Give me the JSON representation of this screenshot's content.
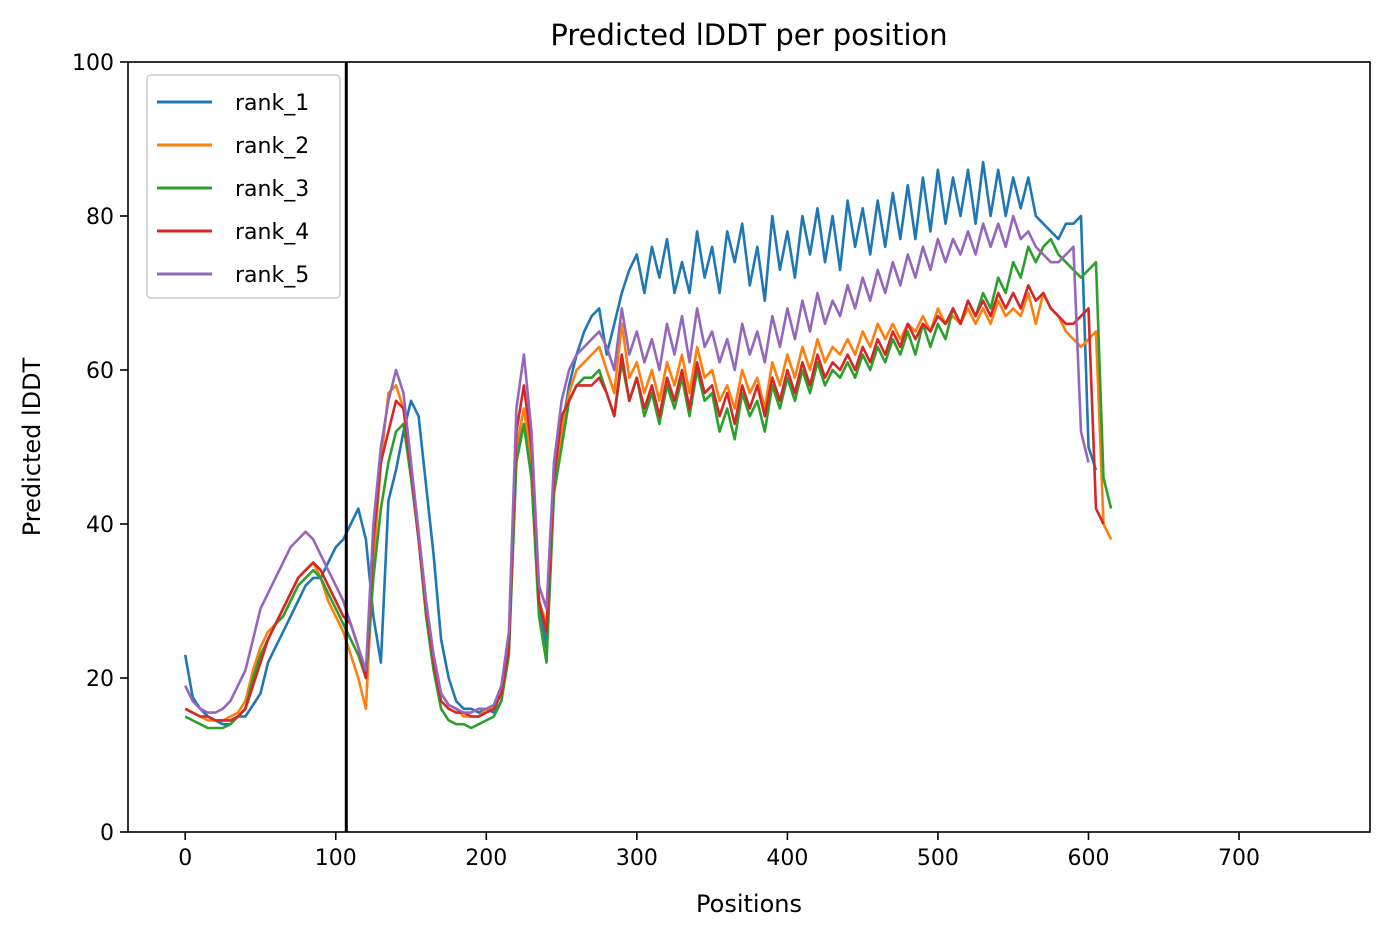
{
  "chart_data": {
    "type": "line",
    "title": "Predicted lDDT per position",
    "xlabel": "Positions",
    "ylabel": "Predicted lDDT",
    "xlim": [
      -38,
      787
    ],
    "ylim": [
      0,
      100
    ],
    "xticks": [
      0,
      100,
      200,
      300,
      400,
      500,
      600,
      700
    ],
    "yticks": [
      0,
      20,
      40,
      60,
      80,
      100
    ],
    "grid": false,
    "legend_position": "top-left",
    "vline": 107,
    "vline_color": "#000000",
    "x_step": 5,
    "series": [
      {
        "name": "rank_1",
        "color": "#1f77b4",
        "x_start": 0,
        "values": [
          23,
          17.5,
          16,
          15,
          14.5,
          14,
          14,
          15,
          15,
          16.5,
          18,
          22,
          24,
          26,
          28,
          30,
          32,
          33,
          33,
          35,
          37,
          38,
          40,
          42,
          38,
          28,
          22,
          43,
          47,
          52,
          56,
          54,
          45,
          36,
          25,
          20,
          17,
          16,
          16,
          15.5,
          16,
          15.5,
          17,
          25,
          49,
          53,
          46,
          30,
          24,
          48,
          52,
          58,
          62,
          65,
          67,
          68,
          62,
          66,
          70,
          73,
          75,
          70,
          76,
          72,
          77,
          70,
          74,
          70,
          78,
          72,
          76,
          70,
          78,
          74,
          79,
          71,
          76,
          69,
          80,
          73,
          78,
          72,
          80,
          75,
          81,
          74,
          80,
          73,
          82,
          76,
          81,
          75,
          82,
          76,
          83,
          77,
          84,
          77,
          85,
          78,
          86,
          79,
          85,
          80,
          86,
          79,
          87,
          80,
          86,
          80,
          85,
          81,
          85,
          80,
          79,
          78,
          77,
          79,
          79,
          80,
          50,
          47
        ]
      },
      {
        "name": "rank_2",
        "color": "#ff7f0e",
        "x_start": 0,
        "values": [
          16,
          15.5,
          15,
          14.5,
          14.5,
          14.5,
          15,
          15.5,
          17,
          21,
          24,
          26,
          27,
          29,
          31,
          33,
          34,
          35,
          33,
          30,
          28,
          26,
          23,
          20,
          16,
          35,
          48,
          57,
          58,
          55,
          47,
          38,
          29,
          22,
          18,
          16.5,
          16,
          15,
          15,
          15,
          16,
          16,
          19,
          25,
          50,
          55,
          48,
          30,
          27,
          45,
          52,
          57,
          60,
          61,
          62,
          63,
          60,
          57,
          66,
          59,
          61,
          57,
          60,
          56,
          61,
          58,
          62,
          57,
          63,
          59,
          60,
          56,
          58,
          55,
          60,
          57,
          59,
          55,
          61,
          58,
          62,
          59,
          63,
          60,
          64,
          61,
          63,
          62,
          64,
          62,
          65,
          63,
          66,
          64,
          66,
          64,
          66,
          65,
          67,
          65,
          68,
          66,
          67,
          66,
          68,
          66,
          68,
          66,
          69,
          67,
          68,
          67,
          70,
          66,
          70,
          68,
          67,
          65,
          64,
          63,
          64,
          65,
          40,
          38
        ]
      },
      {
        "name": "rank_3",
        "color": "#2ca02c",
        "x_start": 0,
        "values": [
          15,
          14.5,
          14,
          13.5,
          13.5,
          13.5,
          14,
          15,
          16,
          20,
          23,
          25,
          27,
          28,
          30,
          32,
          33,
          34,
          33,
          31,
          29,
          27,
          25,
          23,
          20,
          33,
          42,
          48,
          52,
          53,
          46,
          38,
          28,
          21,
          16,
          14.5,
          14,
          14,
          13.5,
          14,
          14.5,
          15,
          17,
          23,
          48,
          53,
          46,
          28,
          22,
          44,
          50,
          56,
          58,
          59,
          59,
          60,
          57,
          54,
          61,
          56,
          59,
          54,
          57,
          53,
          58,
          55,
          59,
          54,
          60,
          56,
          57,
          52,
          55,
          51,
          57,
          54,
          56,
          52,
          58,
          55,
          59,
          56,
          60,
          57,
          61,
          58,
          60,
          59,
          61,
          59,
          62,
          60,
          63,
          61,
          64,
          62,
          65,
          62,
          66,
          63,
          66,
          64,
          68,
          66,
          69,
          67,
          70,
          68,
          72,
          70,
          74,
          72,
          76,
          74,
          76,
          77,
          75,
          74,
          73,
          72,
          73,
          74,
          46,
          42
        ]
      },
      {
        "name": "rank_4",
        "color": "#d62728",
        "x_start": 0,
        "values": [
          16,
          15.5,
          15,
          15,
          14.5,
          14.5,
          14.5,
          15,
          16,
          19,
          22,
          25,
          27,
          29,
          31,
          33,
          34,
          35,
          34,
          32,
          30,
          28,
          27,
          24,
          20,
          38,
          48,
          52,
          56,
          55,
          47,
          38,
          29,
          22,
          17,
          16,
          15.5,
          15.5,
          15,
          15,
          15.5,
          16,
          18,
          24,
          52,
          58,
          50,
          30,
          26,
          46,
          54,
          56,
          58,
          58,
          58,
          59,
          57,
          54,
          62,
          56,
          59,
          55,
          58,
          54,
          59,
          56,
          60,
          55,
          61,
          57,
          58,
          54,
          57,
          53,
          58,
          55,
          58,
          54,
          59,
          56,
          60,
          57,
          61,
          58,
          62,
          59,
          61,
          60,
          62,
          60,
          63,
          61,
          64,
          62,
          65,
          63,
          66,
          64,
          66,
          65,
          67,
          66,
          68,
          66,
          69,
          67,
          69,
          67,
          70,
          68,
          70,
          68,
          71,
          69,
          70,
          68,
          67,
          66,
          66,
          67,
          68,
          42,
          40
        ]
      },
      {
        "name": "rank_5",
        "color": "#9467bd",
        "x_start": 0,
        "values": [
          19,
          17,
          16,
          15.5,
          15.5,
          16,
          17,
          19,
          21,
          25,
          29,
          31,
          33,
          35,
          37,
          38,
          39,
          38,
          36,
          34,
          32,
          30,
          27,
          24,
          21,
          40,
          50,
          56,
          60,
          57,
          48,
          39,
          30,
          23,
          18,
          16.5,
          16,
          15.5,
          15.5,
          16,
          16,
          16.5,
          19,
          26,
          55,
          62,
          52,
          32,
          29,
          48,
          56,
          60,
          62,
          63,
          64,
          65,
          63,
          60,
          68,
          62,
          65,
          61,
          64,
          60,
          66,
          62,
          67,
          61,
          68,
          63,
          65,
          61,
          64,
          60,
          66,
          62,
          65,
          61,
          67,
          63,
          68,
          64,
          69,
          65,
          70,
          66,
          69,
          67,
          71,
          68,
          72,
          69,
          73,
          70,
          74,
          71,
          75,
          72,
          76,
          73,
          77,
          74,
          77,
          75,
          78,
          75,
          79,
          76,
          79,
          76,
          80,
          77,
          78,
          76,
          75,
          74,
          74,
          75,
          76,
          52,
          48
        ]
      }
    ]
  }
}
